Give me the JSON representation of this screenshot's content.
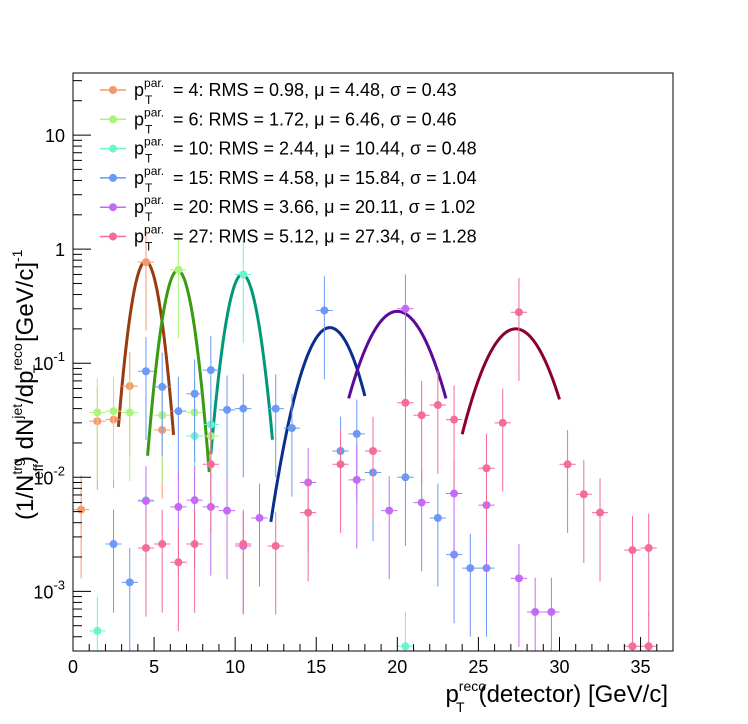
{
  "chart_data": {
    "type": "scatter",
    "xlabel": {
      "main": "p",
      "sup": "reco",
      "sub": "T",
      "rest": "(detector) [GeV/c]"
    },
    "ylabel": {
      "part1": "(1/N",
      "sup1": "trg",
      "sub1": "eff",
      "part2": ") dN",
      "sup2": "jet",
      "part3": "/dp",
      "sup3": "reco",
      "sub3": "T",
      "part4": " [GeV/c]",
      "sup4": "-1"
    },
    "xlim": [
      0,
      37
    ],
    "ylim": [
      0.0003,
      35
    ],
    "yscale": "log",
    "grid": false,
    "legend_position": "top-left",
    "x_ticks": [
      {
        "v": 0,
        "label": "0"
      },
      {
        "v": 5,
        "label": "5"
      },
      {
        "v": 10,
        "label": "10"
      },
      {
        "v": 15,
        "label": "15"
      },
      {
        "v": 20,
        "label": "20"
      },
      {
        "v": 25,
        "label": "25"
      },
      {
        "v": 30,
        "label": "30"
      },
      {
        "v": 35,
        "label": "35"
      }
    ],
    "y_ticks": [
      {
        "v": 0.001,
        "base": "10",
        "exp": "-3"
      },
      {
        "v": 0.01,
        "base": "10",
        "exp": "-2"
      },
      {
        "v": 0.1,
        "base": "10",
        "exp": "-1"
      },
      {
        "v": 1,
        "base": "1",
        "exp": ""
      },
      {
        "v": 10,
        "base": "10",
        "exp": ""
      }
    ],
    "series": [
      {
        "label_p": "p",
        "label_sup": "par.",
        "label_sub": "T",
        "label_rest": " = 4: RMS = 0.98, μ = 4.48, σ = 0.43",
        "color": "#f5996b",
        "fit_color": "#9a3b0c",
        "fit": {
          "amp": 0.78,
          "mu": 4.48,
          "sigma": 0.65,
          "x_range": [
            2.8,
            6.2
          ]
        },
        "points": [
          {
            "x": 0.5,
            "y": 0.0052
          },
          {
            "x": 1.5,
            "y": 0.031
          },
          {
            "x": 2.5,
            "y": 0.032
          },
          {
            "x": 3.5,
            "y": 0.063
          },
          {
            "x": 4.5,
            "y": 0.77
          },
          {
            "x": 5.5,
            "y": 0.026
          }
        ]
      },
      {
        "label_p": "p",
        "label_sup": "par.",
        "label_sub": "T",
        "label_rest": " = 6: RMS = 1.72, μ = 6.46, σ = 0.46",
        "color": "#a9f57a",
        "fit_color": "#3a9a10",
        "fit": {
          "amp": 0.65,
          "mu": 6.46,
          "sigma": 0.68,
          "x_range": [
            4.6,
            8.4
          ]
        },
        "points": [
          {
            "x": 1.5,
            "y": 0.037
          },
          {
            "x": 2.5,
            "y": 0.038
          },
          {
            "x": 3.5,
            "y": 0.037
          },
          {
            "x": 5.5,
            "y": 0.035
          },
          {
            "x": 6.5,
            "y": 0.66
          },
          {
            "x": 7.5,
            "y": 0.037
          },
          {
            "x": 8.5,
            "y": 0.023
          }
        ]
      },
      {
        "label_p": "p",
        "label_sup": "par.",
        "label_sub": "T",
        "label_rest": " = 10: RMS = 2.44, μ = 10.44, σ = 0.48",
        "color": "#6bf5cf",
        "fit_color": "#009977",
        "fit": {
          "amp": 0.6,
          "mu": 10.44,
          "sigma": 0.72,
          "x_range": [
            8.5,
            12.3
          ]
        },
        "points": [
          {
            "x": 1.5,
            "y": 0.00045
          },
          {
            "x": 4.5,
            "y": 0.0063
          },
          {
            "x": 7.5,
            "y": 0.023
          },
          {
            "x": 8.5,
            "y": 0.029
          },
          {
            "x": 10.5,
            "y": 0.6
          },
          {
            "x": 20.5,
            "y": 0.00033
          }
        ]
      },
      {
        "label_p": "p",
        "label_sup": "par.",
        "label_sub": "T",
        "label_rest": " = 15: RMS = 4.58, μ = 15.84, σ = 1.04",
        "color": "#6b99f5",
        "fit_color": "#0a2f8a",
        "fit": {
          "amp": 0.205,
          "mu": 15.84,
          "sigma": 1.3,
          "x_range": [
            12.2,
            18.0
          ]
        },
        "points": [
          {
            "x": 2.5,
            "y": 0.0026
          },
          {
            "x": 3.5,
            "y": 0.0012
          },
          {
            "x": 4.5,
            "y": 0.085
          },
          {
            "x": 5.5,
            "y": 0.062
          },
          {
            "x": 6.5,
            "y": 0.038
          },
          {
            "x": 7.5,
            "y": 0.054
          },
          {
            "x": 8.5,
            "y": 0.087
          },
          {
            "x": 9.5,
            "y": 0.039
          },
          {
            "x": 10.5,
            "y": 0.04
          },
          {
            "x": 12.5,
            "y": 0.04
          },
          {
            "x": 13.5,
            "y": 0.027
          },
          {
            "x": 15.5,
            "y": 0.29
          },
          {
            "x": 16.5,
            "y": 0.017
          },
          {
            "x": 17.5,
            "y": 0.024
          },
          {
            "x": 18.5,
            "y": 0.011
          },
          {
            "x": 20.5,
            "y": 0.01
          },
          {
            "x": 22.5,
            "y": 0.0044
          },
          {
            "x": 23.5,
            "y": 0.0021
          },
          {
            "x": 24.5,
            "y": 0.0016
          },
          {
            "x": 25.5,
            "y": 0.0016
          }
        ]
      },
      {
        "label_p": "p",
        "label_sup": "par.",
        "label_sub": "T",
        "label_rest": " = 20: RMS = 3.66, μ = 20.11, σ = 1.02",
        "color": "#c46bf5",
        "fit_color": "#5b0a99",
        "fit": {
          "amp": 0.285,
          "mu": 20.0,
          "sigma": 1.6,
          "x_range": [
            17.0,
            23.0
          ]
        },
        "points": [
          {
            "x": 4.5,
            "y": 0.0062
          },
          {
            "x": 6.5,
            "y": 0.0055
          },
          {
            "x": 7.5,
            "y": 0.0063
          },
          {
            "x": 8.5,
            "y": 0.0055
          },
          {
            "x": 9.5,
            "y": 0.0051
          },
          {
            "x": 10.5,
            "y": 0.0025
          },
          {
            "x": 11.5,
            "y": 0.0044
          },
          {
            "x": 14.5,
            "y": 0.009
          },
          {
            "x": 17.5,
            "y": 0.0095
          },
          {
            "x": 19.5,
            "y": 0.0051
          },
          {
            "x": 20.5,
            "y": 0.3
          },
          {
            "x": 21.5,
            "y": 0.006
          },
          {
            "x": 23.5,
            "y": 0.0072
          },
          {
            "x": 25.5,
            "y": 0.0057
          },
          {
            "x": 27.5,
            "y": 0.0013
          },
          {
            "x": 28.5,
            "y": 0.00066
          },
          {
            "x": 29.5,
            "y": 0.00066
          }
        ]
      },
      {
        "label_p": "p",
        "label_sup": "par.",
        "label_sub": "T",
        "label_rest": " = 27: RMS = 5.12, μ = 27.34, σ = 1.28",
        "color": "#f56b99",
        "fit_color": "#8a0033",
        "fit": {
          "amp": 0.2,
          "mu": 27.3,
          "sigma": 1.6,
          "x_range": [
            24.0,
            30.0
          ]
        },
        "points": [
          {
            "x": 4.5,
            "y": 0.0024
          },
          {
            "x": 5.5,
            "y": 0.0026
          },
          {
            "x": 6.5,
            "y": 0.0018
          },
          {
            "x": 7.5,
            "y": 0.0026
          },
          {
            "x": 8.5,
            "y": 0.013
          },
          {
            "x": 10.5,
            "y": 0.0026
          },
          {
            "x": 12.5,
            "y": 0.0025
          },
          {
            "x": 14.5,
            "y": 0.0049
          },
          {
            "x": 16.5,
            "y": 0.013
          },
          {
            "x": 18.5,
            "y": 0.017
          },
          {
            "x": 20.5,
            "y": 0.045
          },
          {
            "x": 21.5,
            "y": 0.035
          },
          {
            "x": 22.5,
            "y": 0.043
          },
          {
            "x": 23.5,
            "y": 0.032
          },
          {
            "x": 25.5,
            "y": 0.012
          },
          {
            "x": 26.5,
            "y": 0.03
          },
          {
            "x": 27.5,
            "y": 0.28
          },
          {
            "x": 30.5,
            "y": 0.013
          },
          {
            "x": 31.5,
            "y": 0.0071
          },
          {
            "x": 32.5,
            "y": 0.0049
          },
          {
            "x": 34.5,
            "y": 0.0023
          },
          {
            "x": 35.5,
            "y": 0.0024
          },
          {
            "x": 34.5,
            "y": 0.00033
          },
          {
            "x": 35.5,
            "y": 0.00033
          }
        ]
      }
    ]
  }
}
